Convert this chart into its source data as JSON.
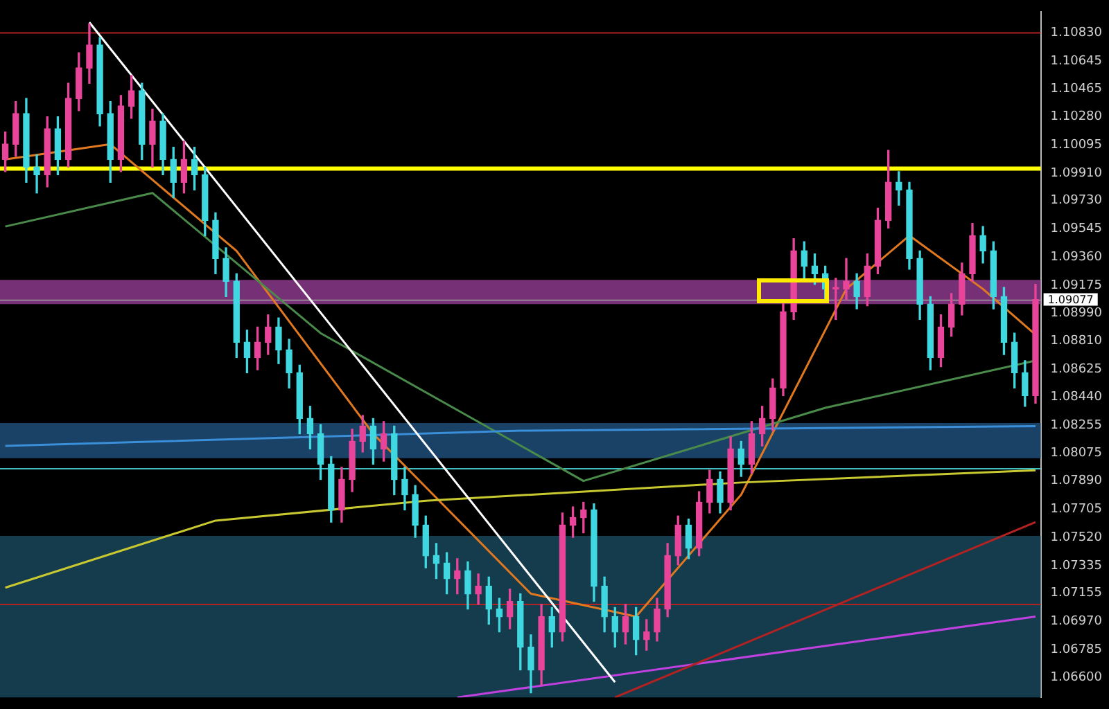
{
  "chart_data": {
    "type": "candlestick",
    "categories": [
      null,
      null,
      null,
      null,
      null,
      null,
      null,
      null,
      null,
      null,
      null,
      null,
      null,
      null,
      null,
      null,
      null,
      null,
      null,
      null,
      null,
      null,
      null,
      null,
      null,
      null,
      null,
      null,
      null,
      null,
      null,
      null,
      null,
      null,
      null,
      null,
      null,
      null,
      null,
      null,
      null,
      null,
      null,
      null,
      null,
      null,
      null,
      null,
      null,
      null,
      null,
      null,
      null,
      null,
      null,
      null,
      null,
      null,
      null,
      null,
      null,
      null,
      null,
      null,
      null,
      null,
      null,
      null,
      null,
      null,
      null,
      null,
      null,
      null,
      null,
      null,
      null,
      null,
      null,
      null,
      null,
      null,
      null,
      null,
      null,
      null,
      null,
      null,
      null,
      null,
      null,
      null,
      null,
      null,
      null,
      null,
      null,
      null,
      null
    ],
    "ohlc": [
      [
        1.1,
        1.1018,
        1.0992,
        1.101
      ],
      [
        1.101,
        1.1038,
        1.1002,
        1.103
      ],
      [
        1.103,
        1.104,
        1.0985,
        1.0995
      ],
      [
        1.0995,
        1.1003,
        1.0978,
        1.099
      ],
      [
        1.099,
        1.1028,
        1.0982,
        1.102
      ],
      [
        1.102,
        1.1028,
        1.099,
        1.1
      ],
      [
        1.1,
        1.105,
        1.0995,
        1.104
      ],
      [
        1.104,
        1.107,
        1.1032,
        1.106
      ],
      [
        1.106,
        1.1089,
        1.105,
        1.1075
      ],
      [
        1.1075,
        1.108,
        1.1022,
        1.103
      ],
      [
        1.103,
        1.1038,
        1.0985,
        1.1
      ],
      [
        1.1,
        1.1042,
        1.0992,
        1.1035
      ],
      [
        1.1035,
        1.1055,
        1.1027,
        1.1045
      ],
      [
        1.1045,
        1.105,
        1.1,
        1.101
      ],
      [
        1.101,
        1.1033,
        1.0995,
        1.1025
      ],
      [
        1.1025,
        1.103,
        1.099,
        1.1
      ],
      [
        1.1,
        1.1008,
        1.0975,
        1.0985
      ],
      [
        1.0985,
        1.1012,
        1.0978,
        1.1
      ],
      [
        1.1,
        1.1008,
        1.098,
        1.099
      ],
      [
        1.099,
        1.0995,
        1.095,
        1.096
      ],
      [
        1.096,
        1.0965,
        1.0925,
        1.0935
      ],
      [
        1.0935,
        1.0942,
        1.091,
        1.092
      ],
      [
        1.092,
        1.0925,
        1.087,
        1.088
      ],
      [
        1.088,
        1.0888,
        1.086,
        1.087
      ],
      [
        1.087,
        1.089,
        1.0862,
        1.088
      ],
      [
        1.088,
        1.0898,
        1.0872,
        1.089
      ],
      [
        1.089,
        1.0896,
        1.0866,
        1.0875
      ],
      [
        1.0875,
        1.0882,
        1.085,
        1.086
      ],
      [
        1.086,
        1.0865,
        1.082,
        1.083
      ],
      [
        1.083,
        1.0838,
        1.081,
        1.082
      ],
      [
        1.082,
        1.0826,
        1.079,
        1.08
      ],
      [
        1.08,
        1.0805,
        1.0762,
        1.077
      ],
      [
        1.077,
        1.0798,
        1.0762,
        1.079
      ],
      [
        1.079,
        1.0823,
        1.0782,
        1.0815
      ],
      [
        1.0815,
        1.0832,
        1.0808,
        1.0825
      ],
      [
        1.0825,
        1.083,
        1.08,
        1.081
      ],
      [
        1.081,
        1.0828,
        1.0802,
        1.082
      ],
      [
        1.082,
        1.0825,
        1.078,
        1.079
      ],
      [
        1.079,
        1.0798,
        1.077,
        1.078
      ],
      [
        1.078,
        1.0786,
        1.0752,
        1.076
      ],
      [
        1.076,
        1.0766,
        1.0732,
        1.074
      ],
      [
        1.074,
        1.0748,
        1.0725,
        1.0735
      ],
      [
        1.0735,
        1.0742,
        1.0715,
        1.0725
      ],
      [
        1.0725,
        1.0738,
        1.0715,
        1.073
      ],
      [
        1.073,
        1.0736,
        1.0705,
        1.0715
      ],
      [
        1.0715,
        1.0728,
        1.0708,
        1.072
      ],
      [
        1.072,
        1.0726,
        1.0695,
        1.0705
      ],
      [
        1.0705,
        1.0712,
        1.069,
        1.07
      ],
      [
        1.07,
        1.0718,
        1.0692,
        1.071
      ],
      [
        1.071,
        1.0715,
        1.0665,
        1.068
      ],
      [
        1.068,
        1.0688,
        1.065,
        1.0665
      ],
      [
        1.0665,
        1.0708,
        1.0655,
        1.07
      ],
      [
        1.07,
        1.0706,
        1.068,
        1.069
      ],
      [
        1.069,
        1.0768,
        1.0684,
        1.076
      ],
      [
        1.076,
        1.0772,
        1.0752,
        1.0765
      ],
      [
        1.0765,
        1.0775,
        1.0755,
        1.077
      ],
      [
        1.077,
        1.0774,
        1.071,
        1.072
      ],
      [
        1.072,
        1.0726,
        1.069,
        1.07
      ],
      [
        1.07,
        1.0706,
        1.068,
        1.069
      ],
      [
        1.069,
        1.0708,
        1.0682,
        1.07
      ],
      [
        1.07,
        1.0706,
        1.0675,
        1.0685
      ],
      [
        1.0685,
        1.0698,
        1.0678,
        1.069
      ],
      [
        1.069,
        1.0712,
        1.0684,
        1.0705
      ],
      [
        1.0705,
        1.0748,
        1.07,
        1.074
      ],
      [
        1.074,
        1.0766,
        1.0734,
        1.076
      ],
      [
        1.076,
        1.0764,
        1.0738,
        1.0745
      ],
      [
        1.0745,
        1.0782,
        1.074,
        1.0775
      ],
      [
        1.0775,
        1.0796,
        1.0768,
        1.079
      ],
      [
        1.079,
        1.0795,
        1.0768,
        1.0775
      ],
      [
        1.0775,
        1.0818,
        1.077,
        1.081
      ],
      [
        1.081,
        1.0815,
        1.0792,
        1.08
      ],
      [
        1.08,
        1.0828,
        1.0794,
        1.082
      ],
      [
        1.082,
        1.0838,
        1.0812,
        1.083
      ],
      [
        1.083,
        1.0856,
        1.0822,
        1.085
      ],
      [
        1.085,
        1.0906,
        1.0845,
        1.09
      ],
      [
        1.09,
        1.0948,
        1.0895,
        1.094
      ],
      [
        1.094,
        1.0946,
        1.0922,
        1.093
      ],
      [
        1.093,
        1.0938,
        1.0918,
        1.0925
      ],
      [
        1.0925,
        1.093,
        1.0907,
        1.0915
      ],
      [
        1.0915,
        1.0922,
        1.0895,
        1.0915
      ],
      [
        1.0915,
        1.0935,
        1.0908,
        1.092
      ],
      [
        1.092,
        1.0925,
        1.0902,
        1.091
      ],
      [
        1.091,
        1.0938,
        1.0904,
        1.093
      ],
      [
        1.093,
        1.0968,
        1.0925,
        1.096
      ],
      [
        1.096,
        1.1006,
        1.0955,
        1.0985
      ],
      [
        1.0985,
        1.0992,
        1.097,
        1.098
      ],
      [
        1.098,
        1.0985,
        1.0928,
        1.0935
      ],
      [
        1.0935,
        1.094,
        1.0895,
        1.0905
      ],
      [
        1.0905,
        1.091,
        1.0862,
        1.087
      ],
      [
        1.087,
        1.0898,
        1.0864,
        1.089
      ],
      [
        1.089,
        1.0912,
        1.0884,
        1.0905
      ],
      [
        1.0905,
        1.0932,
        1.0898,
        1.0925
      ],
      [
        1.0925,
        1.0958,
        1.092,
        1.095
      ],
      [
        1.095,
        1.0956,
        1.0932,
        1.094
      ],
      [
        1.094,
        1.0946,
        1.0902,
        1.091
      ],
      [
        1.091,
        1.0916,
        1.0872,
        1.088
      ],
      [
        1.088,
        1.0886,
        1.085,
        1.086
      ],
      [
        1.086,
        1.0868,
        1.0838,
        1.0845
      ],
      [
        1.0845,
        1.0918,
        1.084,
        1.0908
      ]
    ],
    "series": [
      {
        "type": "line",
        "color": "#ffffff",
        "values": [
          null,
          null,
          null,
          null,
          null,
          null,
          null,
          null,
          1.109,
          null,
          null,
          null,
          null,
          null,
          null,
          null,
          null,
          null,
          null,
          null,
          null,
          null,
          null,
          null,
          null,
          null,
          null,
          null,
          null,
          null,
          null,
          null,
          null,
          null,
          null,
          null,
          null,
          null,
          null,
          null,
          null,
          null,
          null,
          null,
          null,
          null,
          null,
          null,
          null,
          null,
          null,
          null,
          null,
          null,
          null,
          null,
          null,
          null,
          1.0657,
          null,
          null,
          null,
          null,
          null,
          null,
          null,
          null,
          null,
          null,
          null,
          null,
          null,
          null,
          null,
          null,
          null,
          null,
          null,
          null,
          null,
          null,
          null,
          null,
          null,
          null,
          null,
          null,
          null,
          null,
          null,
          null,
          null,
          null,
          null,
          null,
          null,
          null,
          null,
          null
        ]
      },
      {
        "type": "line",
        "color": "#b22222",
        "values": [
          null,
          null,
          null,
          null,
          null,
          null,
          null,
          null,
          null,
          null,
          null,
          null,
          null,
          null,
          null,
          null,
          null,
          null,
          null,
          null,
          null,
          null,
          null,
          null,
          null,
          null,
          null,
          null,
          null,
          null,
          null,
          null,
          null,
          null,
          null,
          null,
          null,
          null,
          null,
          null,
          null,
          null,
          null,
          null,
          null,
          null,
          null,
          null,
          null,
          null,
          null,
          null,
          null,
          null,
          null,
          null,
          null,
          null,
          1.0647,
          null,
          null,
          null,
          null,
          null,
          null,
          null,
          null,
          null,
          null,
          null,
          null,
          null,
          null,
          null,
          null,
          null,
          null,
          null,
          null,
          null,
          null,
          null,
          null,
          null,
          null,
          null,
          null,
          null,
          null,
          null,
          null,
          null,
          null,
          null,
          null,
          null,
          null,
          null,
          1.0762
        ]
      },
      {
        "type": "line",
        "color": "#c040e0",
        "values": [
          null,
          null,
          null,
          null,
          null,
          null,
          null,
          null,
          null,
          null,
          null,
          null,
          null,
          null,
          null,
          null,
          null,
          null,
          null,
          null,
          null,
          null,
          null,
          null,
          null,
          null,
          null,
          null,
          null,
          null,
          null,
          null,
          null,
          null,
          null,
          null,
          null,
          null,
          null,
          null,
          null,
          null,
          null,
          1.0647,
          null,
          null,
          null,
          null,
          null,
          null,
          null,
          null,
          null,
          null,
          null,
          null,
          null,
          null,
          null,
          null,
          null,
          null,
          null,
          null,
          null,
          null,
          null,
          null,
          null,
          null,
          null,
          null,
          null,
          null,
          null,
          null,
          null,
          null,
          null,
          null,
          null,
          null,
          null,
          null,
          null,
          null,
          null,
          null,
          null,
          null,
          null,
          null,
          null,
          null,
          null,
          null,
          null,
          null,
          1.07
        ]
      },
      {
        "type": "line",
        "color": "#3a8fd8",
        "values": [
          1.0812,
          null,
          null,
          null,
          null,
          null,
          null,
          null,
          null,
          null,
          null,
          null,
          null,
          null,
          null,
          null,
          null,
          null,
          null,
          null,
          null,
          null,
          null,
          null,
          null,
          null,
          null,
          null,
          null,
          null,
          null,
          null,
          null,
          null,
          null,
          null,
          null,
          null,
          null,
          null,
          null,
          null,
          null,
          null,
          null,
          null,
          null,
          null,
          null,
          1.0822,
          null,
          null,
          null,
          null,
          null,
          null,
          null,
          null,
          null,
          null,
          null,
          null,
          null,
          null,
          null,
          null,
          null,
          null,
          null,
          null,
          null,
          null,
          null,
          null,
          null,
          null,
          null,
          null,
          null,
          null,
          null,
          null,
          null,
          null,
          null,
          null,
          null,
          null,
          null,
          null,
          null,
          null,
          null,
          null,
          null,
          null,
          null,
          null,
          1.0825
        ]
      },
      {
        "type": "line",
        "color": "#c8c830",
        "values": [
          1.0719,
          null,
          null,
          null,
          null,
          null,
          null,
          null,
          null,
          null,
          null,
          null,
          null,
          null,
          null,
          null,
          null,
          null,
          null,
          null,
          1.0763,
          null,
          null,
          null,
          null,
          null,
          null,
          null,
          null,
          null,
          null,
          null,
          null,
          null,
          null,
          null,
          null,
          null,
          null,
          null,
          1.0776,
          null,
          null,
          null,
          null,
          null,
          null,
          null,
          null,
          null,
          null,
          null,
          null,
          null,
          null,
          null,
          null,
          null,
          null,
          null,
          null,
          null,
          null,
          null,
          null,
          null,
          null,
          null,
          null,
          null,
          1.0788,
          null,
          null,
          null,
          null,
          null,
          null,
          null,
          null,
          null,
          null,
          null,
          null,
          null,
          null,
          null,
          null,
          null,
          null,
          null,
          null,
          null,
          null,
          null,
          null,
          null,
          null,
          null,
          1.0796
        ]
      },
      {
        "type": "line",
        "color": "#4a8a4a",
        "values": [
          1.0956,
          null,
          null,
          null,
          null,
          null,
          null,
          null,
          null,
          null,
          null,
          null,
          null,
          null,
          1.0978,
          null,
          null,
          null,
          null,
          null,
          null,
          null,
          null,
          null,
          null,
          null,
          null,
          null,
          null,
          null,
          1.0886,
          null,
          null,
          null,
          null,
          null,
          null,
          null,
          null,
          null,
          null,
          null,
          null,
          null,
          null,
          null,
          null,
          null,
          null,
          null,
          null,
          null,
          null,
          null,
          null,
          1.0789,
          null,
          null,
          null,
          null,
          null,
          null,
          null,
          null,
          null,
          null,
          null,
          null,
          null,
          null,
          null,
          null,
          null,
          null,
          null,
          null,
          null,
          null,
          1.0837,
          null,
          null,
          null,
          null,
          null,
          null,
          null,
          null,
          null,
          null,
          null,
          null,
          null,
          null,
          null,
          null,
          null,
          null,
          null,
          1.0868
        ]
      },
      {
        "type": "line",
        "color": "#e07820",
        "values": [
          1.1,
          null,
          null,
          null,
          null,
          null,
          null,
          null,
          null,
          null,
          1.101,
          null,
          null,
          null,
          null,
          null,
          null,
          null,
          null,
          null,
          null,
          null,
          1.094,
          null,
          null,
          null,
          null,
          null,
          null,
          null,
          null,
          null,
          null,
          null,
          null,
          1.082,
          null,
          null,
          null,
          null,
          null,
          null,
          null,
          null,
          null,
          null,
          null,
          null,
          null,
          null,
          1.0715,
          null,
          null,
          null,
          null,
          null,
          null,
          null,
          null,
          null,
          1.07,
          null,
          null,
          null,
          null,
          null,
          null,
          null,
          null,
          null,
          1.078,
          null,
          null,
          null,
          null,
          null,
          null,
          null,
          null,
          null,
          1.0915,
          null,
          null,
          null,
          null,
          null,
          1.095,
          null,
          null,
          null,
          null,
          null,
          null,
          1.0915,
          null,
          null,
          null,
          null,
          1.0885
        ]
      }
    ],
    "ylim": [
      1.0647,
      1.1097
    ],
    "yticks": [
      {
        "value": 1.1083,
        "label": "1.10830"
      },
      1.10645,
      1.10465,
      {
        "value": 1.1028,
        "label": "1.10280"
      },
      1.10095,
      {
        "value": 1.0991,
        "label": "1.09910"
      },
      {
        "value": 1.0973,
        "label": "1.09730"
      },
      1.09545,
      {
        "value": 1.0936,
        "label": "1.09360"
      },
      1.09175,
      {
        "value": 1.0899,
        "label": "1.08990"
      },
      {
        "value": 1.0881,
        "label": "1.08810"
      },
      1.08625,
      {
        "value": 1.0844,
        "label": "1.08440"
      },
      1.08255,
      1.08075,
      {
        "value": 1.0789,
        "label": "1.07890"
      },
      1.07705,
      {
        "value": 1.0752,
        "label": "1.07520"
      },
      1.07335,
      1.07155,
      {
        "value": 1.0697,
        "label": "1.06970"
      },
      1.06785,
      {
        "value": 1.066,
        "label": "1.06600"
      }
    ],
    "ref_lines": [
      {
        "axis": "y",
        "value": 1.1083,
        "color": "#b22222"
      },
      {
        "axis": "y",
        "value": 1.0994,
        "color": "#ffff00"
      },
      {
        "axis": "y",
        "value": 1.0708,
        "color": "#b22222"
      },
      {
        "axis": "y",
        "value": 1.0797,
        "color": "#3fbfbf"
      },
      {
        "axis": "y",
        "value": 1.09077,
        "label": "1.09077",
        "color": "#a0a0a0"
      }
    ],
    "bands": [
      {
        "axis": "y",
        "from": 1.0905,
        "to": 1.0921,
        "color": "#8b3a8b"
      },
      {
        "axis": "y",
        "from": 1.0804,
        "to": 1.0827,
        "color": "#1f4e79"
      },
      {
        "axis": "y",
        "from": 1.0647,
        "to": 1.0753,
        "color": "#17465a"
      }
    ],
    "legend": false
  }
}
